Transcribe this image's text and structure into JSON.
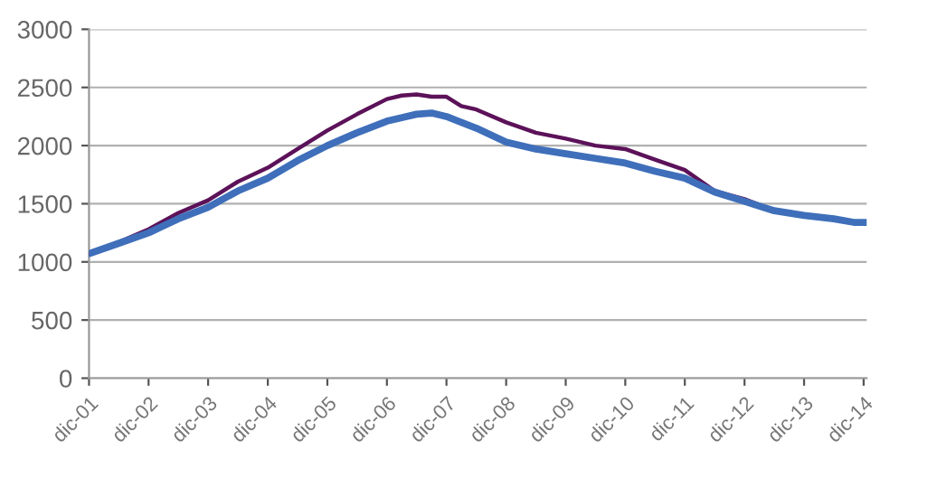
{
  "chart_data": {
    "type": "line",
    "x": [
      "2001-12",
      "2002-06",
      "2002-12",
      "2003-06",
      "2003-12",
      "2004-06",
      "2004-12",
      "2005-06",
      "2005-12",
      "2006-06",
      "2006-12",
      "2007-03",
      "2007-06",
      "2007-09",
      "2007-12",
      "2008-03",
      "2008-06",
      "2008-12",
      "2009-06",
      "2009-12",
      "2010-06",
      "2010-12",
      "2011-06",
      "2011-12",
      "2012-06",
      "2012-12",
      "2013-06",
      "2013-12",
      "2014-06",
      "2014-10",
      "2014-12"
    ],
    "series": [
      {
        "color": "#5c1259",
        "values": [
          1070,
          1170,
          1280,
          1420,
          1530,
          1690,
          1810,
          1970,
          2130,
          2270,
          2400,
          2430,
          2440,
          2420,
          2420,
          2340,
          2310,
          2200,
          2110,
          2060,
          2000,
          1970,
          1880,
          1790,
          1610,
          1540,
          1440,
          1400,
          null,
          null,
          null
        ]
      },
      {
        "color": "#3f6fba",
        "values": [
          1070,
          1160,
          1250,
          1370,
          1470,
          1610,
          1720,
          1870,
          2000,
          2110,
          2210,
          2240,
          2270,
          2280,
          2250,
          2200,
          2150,
          2030,
          1970,
          1930,
          1890,
          1850,
          1780,
          1720,
          1600,
          1520,
          1440,
          1400,
          1370,
          1340,
          1340
        ]
      }
    ],
    "xlim": [
      "2001-12-01",
      "2014-12-20"
    ],
    "xticks": [
      {
        "value": "2001-12",
        "label": "dic-01"
      },
      {
        "value": "2002-12",
        "label": "dic-02"
      },
      {
        "value": "2003-12",
        "label": "dic-03"
      },
      {
        "value": "2004-12",
        "label": "dic-04"
      },
      {
        "value": "2005-12",
        "label": "dic-05"
      },
      {
        "value": "2006-12",
        "label": "dic-06"
      },
      {
        "value": "2007-12",
        "label": "dic-07"
      },
      {
        "value": "2008-12",
        "label": "dic-08"
      },
      {
        "value": "2009-12",
        "label": "dic-09"
      },
      {
        "value": "2010-12",
        "label": "dic-10"
      },
      {
        "value": "2011-12",
        "label": "dic-11"
      },
      {
        "value": "2012-12",
        "label": "dic-12"
      },
      {
        "value": "2013-12",
        "label": "dic-13"
      },
      {
        "value": "2014-12",
        "label": "dic-14"
      }
    ],
    "ylim": [
      0,
      3000
    ],
    "yticks": [
      0,
      500,
      1000,
      1500,
      2000,
      2500,
      3000
    ],
    "grid": "y",
    "legend": false,
    "marker": "none",
    "line_style": "solid"
  }
}
